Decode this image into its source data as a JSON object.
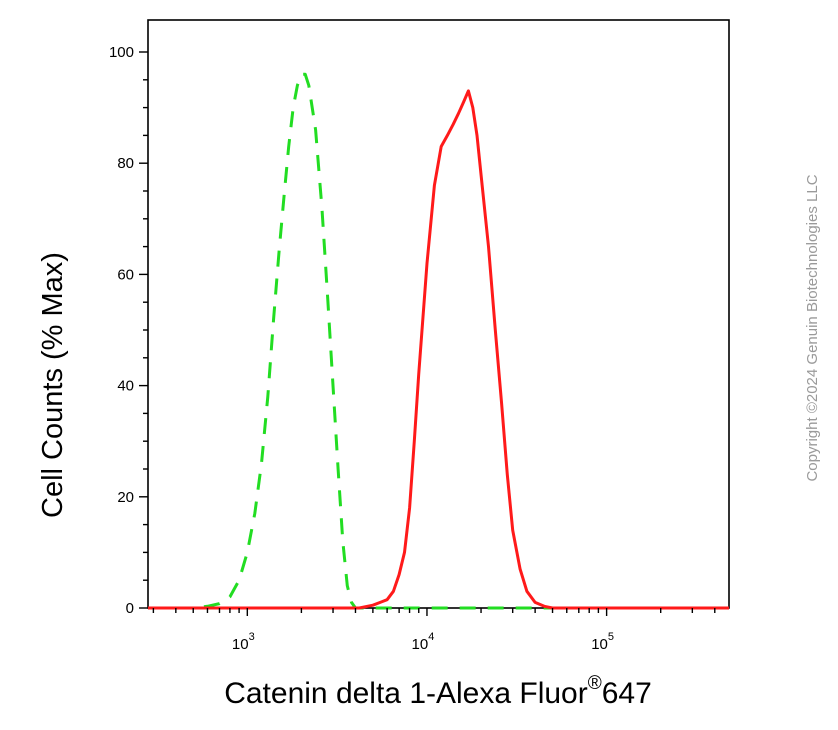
{
  "chart_data": {
    "type": "line",
    "title": "",
    "xlabel": "Catenin delta 1-Alexa Fluor",
    "xlabel_superscript": "®",
    "xlabel_suffix": "647",
    "ylabel": "Cell Counts (% Max)",
    "x_scale": "log",
    "xlim": [
      280,
      480000
    ],
    "ylim": [
      0,
      100
    ],
    "x_ticks": [
      {
        "value": 1000,
        "base": "10",
        "exp": "3"
      },
      {
        "value": 10000,
        "base": "10",
        "exp": "4"
      },
      {
        "value": 100000,
        "base": "10",
        "exp": "5"
      }
    ],
    "y_ticks": [
      {
        "value": 0,
        "label": "0"
      },
      {
        "value": 20,
        "label": "20"
      },
      {
        "value": 40,
        "label": "40"
      },
      {
        "value": 60,
        "label": "60"
      },
      {
        "value": 80,
        "label": "80"
      },
      {
        "value": 100,
        "label": "100"
      }
    ],
    "grid": false,
    "series": [
      {
        "color": "#22dd22",
        "style": "dashed",
        "points": [
          [
            280,
            0
          ],
          [
            500,
            0
          ],
          [
            600,
            0.3
          ],
          [
            700,
            0.8
          ],
          [
            800,
            2
          ],
          [
            900,
            5
          ],
          [
            1000,
            10
          ],
          [
            1100,
            17
          ],
          [
            1200,
            26
          ],
          [
            1300,
            38
          ],
          [
            1400,
            52
          ],
          [
            1500,
            64
          ],
          [
            1600,
            74
          ],
          [
            1700,
            83
          ],
          [
            1800,
            90
          ],
          [
            1900,
            94
          ],
          [
            2000,
            96
          ],
          [
            2100,
            96
          ],
          [
            2200,
            94
          ],
          [
            2400,
            86
          ],
          [
            2600,
            72
          ],
          [
            2800,
            56
          ],
          [
            3000,
            40
          ],
          [
            3200,
            25
          ],
          [
            3400,
            12
          ],
          [
            3600,
            4
          ],
          [
            3800,
            1
          ],
          [
            4000,
            0
          ],
          [
            480000,
            0
          ]
        ]
      },
      {
        "color": "#ff1a1a",
        "style": "solid",
        "points": [
          [
            280,
            0
          ],
          [
            4200,
            0
          ],
          [
            5000,
            0.5
          ],
          [
            6000,
            1.5
          ],
          [
            6500,
            3
          ],
          [
            7000,
            6
          ],
          [
            7500,
            10
          ],
          [
            8000,
            18
          ],
          [
            8500,
            30
          ],
          [
            9000,
            42
          ],
          [
            10000,
            62
          ],
          [
            11000,
            76
          ],
          [
            12000,
            83
          ],
          [
            13000,
            85
          ],
          [
            14000,
            87
          ],
          [
            15000,
            89
          ],
          [
            16000,
            91
          ],
          [
            17000,
            93
          ],
          [
            18000,
            90
          ],
          [
            19000,
            85
          ],
          [
            20000,
            78
          ],
          [
            22000,
            65
          ],
          [
            24000,
            50
          ],
          [
            26000,
            37
          ],
          [
            28000,
            24
          ],
          [
            30000,
            14
          ],
          [
            33000,
            7
          ],
          [
            36000,
            3
          ],
          [
            40000,
            1
          ],
          [
            45000,
            0.3
          ],
          [
            50000,
            0
          ],
          [
            480000,
            0
          ]
        ]
      }
    ]
  },
  "watermark": "Copyright ©2024 Genuin Biotechnologies LLC"
}
